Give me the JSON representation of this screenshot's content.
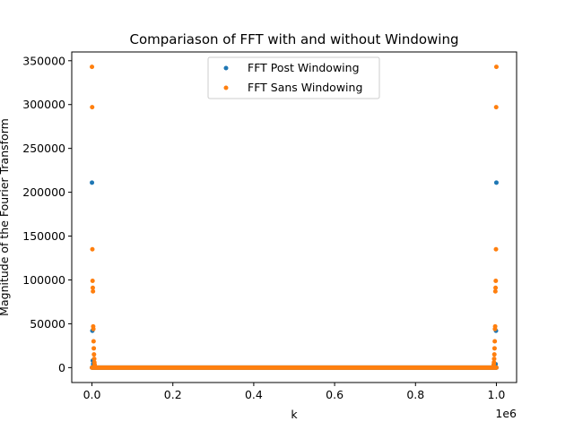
{
  "chart_data": {
    "type": "scatter",
    "title": "Compariason of FFT with and without Windowing",
    "xlabel": "k",
    "ylabel": "Magnitude of the Fourier Transform",
    "x_offset_text": "1e6",
    "xlim": [
      -50000,
      1050000
    ],
    "ylim": [
      -17000,
      360000
    ],
    "xticks": [
      0,
      200000,
      400000,
      600000,
      800000,
      1000000
    ],
    "xtick_labels": [
      "0.0",
      "0.2",
      "0.4",
      "0.6",
      "0.8",
      "1.0"
    ],
    "yticks": [
      0,
      50000,
      100000,
      150000,
      200000,
      250000,
      300000,
      350000
    ],
    "ytick_labels": [
      "0",
      "50000",
      "100000",
      "150000",
      "200000",
      "250000",
      "300000",
      "350000"
    ],
    "legend_position": "upper center",
    "grid": false,
    "n_points": 1000000,
    "series": [
      {
        "name": "FFT Post Windowing",
        "color": "#1f77b4",
        "marker": "point",
        "baseline": 0,
        "x": [
          0,
          1000,
          2000,
          3000,
          4000,
          5000,
          6000,
          995000,
          996000,
          997000,
          998000,
          999000,
          1000000
        ],
        "y": [
          211000,
          42000,
          8000,
          4000,
          2000,
          1000,
          500,
          500,
          1000,
          2000,
          4000,
          42000,
          211000
        ]
      },
      {
        "name": "FFT Sans Windowing",
        "color": "#ff7f0e",
        "marker": "point",
        "baseline": 0,
        "x": [
          0,
          500,
          1000,
          1500,
          2000,
          2500,
          3000,
          3500,
          4000,
          4500,
          5000,
          5500,
          6000,
          6500,
          7000,
          993000,
          993500,
          994000,
          994500,
          995000,
          995500,
          996000,
          996500,
          997000,
          997500,
          998000,
          998500,
          999000,
          999500,
          1000000
        ],
        "y": [
          343000,
          297000,
          135000,
          99000,
          91000,
          87000,
          47000,
          44000,
          30000,
          22000,
          15000,
          10000,
          6000,
          3500,
          2000,
          2000,
          3500,
          6000,
          10000,
          15000,
          22000,
          30000,
          44000,
          47000,
          87000,
          91000,
          99000,
          135000,
          297000,
          343000
        ]
      }
    ]
  }
}
